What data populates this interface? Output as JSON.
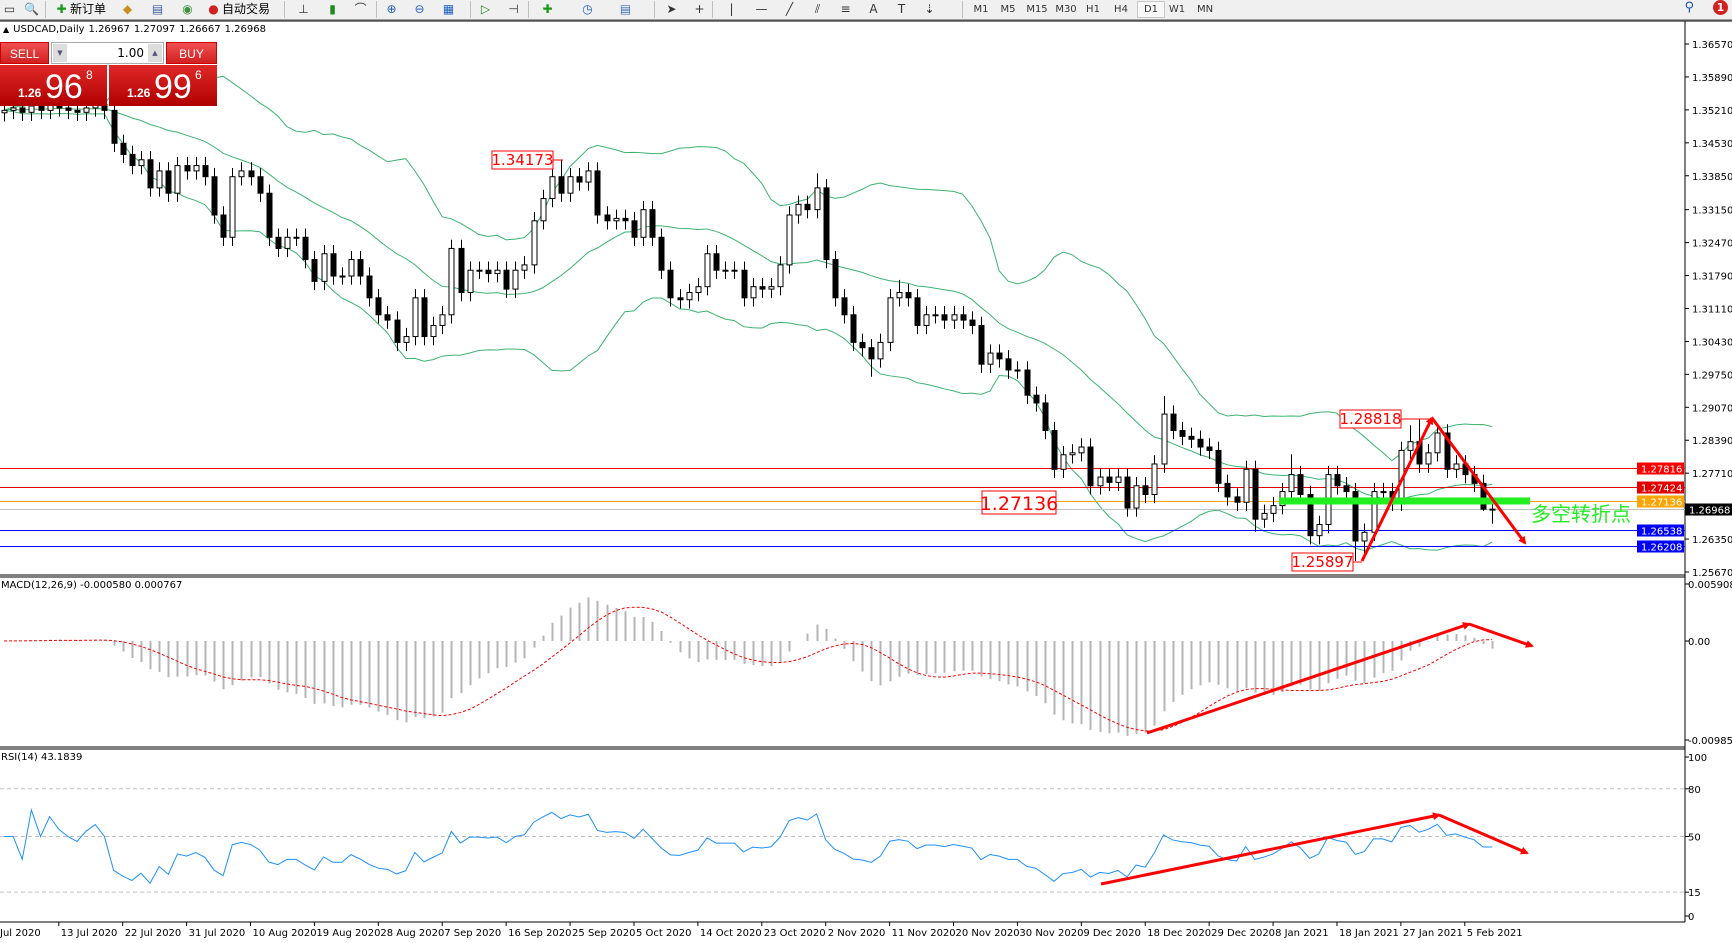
{
  "toolbar": {
    "new_order": "新订单",
    "auto_trading": "自动交易",
    "timeframes": [
      "M1",
      "M5",
      "M15",
      "M30",
      "H1",
      "H4",
      "D1",
      "W1",
      "MN"
    ],
    "active_timeframe": "D1",
    "notification_count": "1",
    "icons": [
      "new-chart-icon",
      "zoom-chart-icon",
      "new-order-icon",
      "metaeditor-icon",
      "market-icon",
      "signals-icon",
      "auto-trading-icon",
      "bar-chart-icon",
      "candlestick-icon",
      "line-chart-icon",
      "zoom-in-icon",
      "zoom-out-icon",
      "tile-windows-icon",
      "autoscroll-icon",
      "chart-shift-icon",
      "indicators-icon",
      "periods-icon",
      "templates-icon",
      "cursor-icon",
      "crosshair-icon",
      "vertical-line-icon",
      "horizontal-line-icon",
      "trendline-icon",
      "equidistant-channel-icon",
      "fibonacci-icon",
      "text-icon",
      "text-label-icon",
      "arrows-icon",
      "search-icon",
      "notification-icon"
    ]
  },
  "trade_panel": {
    "sell_label": "SELL",
    "buy_label": "BUY",
    "volume": "1.00",
    "sell_price": {
      "prefix": "1.26",
      "big": "96",
      "sup": "8"
    },
    "buy_price": {
      "prefix": "1.26",
      "big": "99",
      "sup": "6"
    },
    "color": "#d02020"
  },
  "chart_data": [
    {
      "type": "candlestick",
      "header": {
        "symbol": "USDCAD,Daily",
        "open": "1.26967",
        "high": "1.27097",
        "low": "1.26667",
        "close": "1.26968"
      },
      "ylim": [
        1.2567,
        1.3657
      ],
      "y_ticks": [
        "1.36570",
        "1.35890",
        "1.35210",
        "1.34530",
        "1.33850",
        "1.33150",
        "1.32470",
        "1.31790",
        "1.31110",
        "1.30430",
        "1.29750",
        "1.29070",
        "1.28390",
        "1.27710",
        "1.26350",
        "1.25670"
      ],
      "x_ticks": [
        "Jul 2020",
        "13 Jul 2020",
        "22 Jul 2020",
        "31 Jul 2020",
        "10 Aug 2020",
        "19 Aug 2020",
        "28 Aug 2020",
        "7 Sep 2020",
        "16 Sep 2020",
        "25 Sep 2020",
        "5 Oct 2020",
        "14 Oct 2020",
        "23 Oct 2020",
        "2 Nov 2020",
        "11 Nov 2020",
        "20 Nov 2020",
        "30 Nov 2020",
        "9 Dec 2020",
        "18 Dec 2020",
        "29 Dec 2020",
        "8 Jan 2021",
        "18 Jan 2021",
        "27 Jan 2021",
        "5 Feb 2021"
      ],
      "indicator": "Bollinger Bands",
      "band_color": "#3cb371",
      "open": [
        1.3515,
        1.352,
        1.3525,
        1.3516,
        1.3529,
        1.352,
        1.3532,
        1.3525,
        1.352,
        1.3516,
        1.3525,
        1.3532,
        1.352,
        1.3452,
        1.3429,
        1.3406,
        1.3418,
        1.336,
        1.3395,
        1.3349,
        1.3406,
        1.3395,
        1.3406,
        1.3383,
        1.3304,
        1.3258,
        1.3383,
        1.3395,
        1.3383,
        1.3349,
        1.3258,
        1.3235,
        1.3258,
        1.3258,
        1.3212,
        1.3167,
        1.3224,
        1.3178,
        1.3178,
        1.3212,
        1.3178,
        1.3133,
        1.3098,
        1.3087,
        1.3041,
        1.3053,
        1.3133,
        1.3053,
        1.3076,
        1.3098,
        1.3235,
        1.3144,
        1.319,
        1.319,
        1.3183,
        1.319,
        1.3151,
        1.319,
        1.3201,
        1.3292,
        1.3338,
        1.3383,
        1.3349,
        1.3383,
        1.3372,
        1.3395,
        1.3304,
        1.3292,
        1.3297,
        1.3292,
        1.3258,
        1.3315,
        1.3258,
        1.319,
        1.3133,
        1.3129,
        1.3144,
        1.3156,
        1.3224,
        1.319,
        1.319,
        1.319,
        1.3133,
        1.3156,
        1.3151,
        1.3156,
        1.3201,
        1.3304,
        1.3326,
        1.3315,
        1.336,
        1.3212,
        1.3133,
        1.3098,
        1.3041,
        1.303,
        1.3007,
        1.3041,
        1.3133,
        1.3144,
        1.3133,
        1.3076,
        1.3098,
        1.3098,
        1.3087,
        1.3098,
        1.3087,
        1.3076,
        1.2996,
        1.3019,
        1.3007,
        1.2984,
        1.2984,
        1.2932,
        1.2916,
        1.2859,
        1.2779,
        1.2809,
        1.2813,
        1.2825,
        1.2745,
        1.2763,
        1.2752,
        1.2763,
        1.2699,
        1.2745,
        1.2727,
        1.279,
        1.2893,
        1.2859,
        1.2847,
        1.2841,
        1.2825,
        1.2818,
        1.275,
        1.2722,
        1.2711,
        1.2779,
        1.2676,
        1.2688,
        1.2704,
        1.2733,
        1.2768,
        1.2727,
        1.2642,
        1.2665,
        1.2768,
        1.2745,
        1.2733,
        1.2631,
        1.2649,
        1.2733,
        1.2733,
        1.2711,
        1.2818,
        1.2836,
        1.279,
        1.2813,
        1.2854,
        1.2779,
        1.279,
        1.2768,
        1.275,
        1.26967
      ],
      "high": [
        1.3538,
        1.3543,
        1.3543,
        1.3547,
        1.3547,
        1.355,
        1.355,
        1.3543,
        1.3538,
        1.3543,
        1.355,
        1.355,
        1.3538,
        1.347,
        1.3447,
        1.3436,
        1.3436,
        1.3413,
        1.3413,
        1.3424,
        1.3424,
        1.3424,
        1.3424,
        1.3401,
        1.3322,
        1.3401,
        1.3413,
        1.3413,
        1.3401,
        1.3367,
        1.3276,
        1.3276,
        1.3276,
        1.3276,
        1.323,
        1.3242,
        1.3242,
        1.3196,
        1.323,
        1.323,
        1.3196,
        1.3151,
        1.3116,
        1.3105,
        1.3071,
        1.3151,
        1.3151,
        1.3094,
        1.3116,
        1.3253,
        1.3253,
        1.3208,
        1.3208,
        1.3208,
        1.3208,
        1.3208,
        1.3208,
        1.3219,
        1.331,
        1.3356,
        1.3401,
        1.3417,
        1.3401,
        1.3401,
        1.3413,
        1.3413,
        1.3322,
        1.3315,
        1.3315,
        1.331,
        1.3333,
        1.3333,
        1.3276,
        1.3208,
        1.3151,
        1.3162,
        1.3174,
        1.3242,
        1.3242,
        1.3208,
        1.3208,
        1.3208,
        1.3174,
        1.3174,
        1.3174,
        1.3219,
        1.3322,
        1.3344,
        1.3344,
        1.339,
        1.3378,
        1.323,
        1.3151,
        1.3116,
        1.3059,
        1.3048,
        1.3059,
        1.3151,
        1.317,
        1.3162,
        1.3151,
        1.3116,
        1.3116,
        1.3116,
        1.3116,
        1.3116,
        1.3105,
        1.3094,
        1.3037,
        1.3037,
        1.3025,
        1.3002,
        1.3002,
        1.295,
        1.2934,
        1.2877,
        1.2827,
        1.2831,
        1.2843,
        1.2843,
        1.2781,
        1.2781,
        1.2781,
        1.2781,
        1.2763,
        1.2763,
        1.2808,
        1.293,
        1.2911,
        1.2877,
        1.2865,
        1.2859,
        1.2843,
        1.2836,
        1.2768,
        1.274,
        1.2797,
        1.2797,
        1.2706,
        1.2722,
        1.2751,
        1.281,
        1.2786,
        1.2745,
        1.2683,
        1.2786,
        1.2786,
        1.2763,
        1.2751,
        1.2667,
        1.2751,
        1.2751,
        1.2751,
        1.2836,
        1.287,
        1.2882,
        1.2831,
        1.2872,
        1.2872,
        1.2808,
        1.2808,
        1.2786,
        1.2768,
        1.27097
      ],
      "low": [
        1.3497,
        1.3502,
        1.3498,
        1.3498,
        1.3502,
        1.3502,
        1.3507,
        1.3502,
        1.3498,
        1.3498,
        1.3507,
        1.3502,
        1.3434,
        1.3411,
        1.3388,
        1.3388,
        1.3342,
        1.3342,
        1.3331,
        1.3331,
        1.3377,
        1.3377,
        1.3365,
        1.3286,
        1.324,
        1.324,
        1.3365,
        1.3365,
        1.3331,
        1.324,
        1.3217,
        1.3217,
        1.324,
        1.3194,
        1.3149,
        1.3149,
        1.316,
        1.316,
        1.316,
        1.316,
        1.3115,
        1.308,
        1.3069,
        1.3023,
        1.3023,
        1.3035,
        1.3035,
        1.3035,
        1.3058,
        1.308,
        1.3126,
        1.3126,
        1.3172,
        1.3165,
        1.3165,
        1.3133,
        1.3133,
        1.3172,
        1.3183,
        1.3274,
        1.332,
        1.3331,
        1.3331,
        1.3354,
        1.3354,
        1.3286,
        1.3274,
        1.3274,
        1.3274,
        1.324,
        1.324,
        1.324,
        1.3172,
        1.3115,
        1.3111,
        1.3111,
        1.3126,
        1.3138,
        1.3172,
        1.3172,
        1.3172,
        1.3115,
        1.3115,
        1.3133,
        1.3133,
        1.3138,
        1.3183,
        1.3286,
        1.3297,
        1.3297,
        1.3194,
        1.3115,
        1.308,
        1.3023,
        1.3012,
        1.297,
        1.2989,
        1.3023,
        1.3115,
        1.3115,
        1.3058,
        1.3058,
        1.308,
        1.3069,
        1.3069,
        1.3069,
        1.3058,
        1.2978,
        1.2978,
        1.2989,
        1.2966,
        1.2966,
        1.2914,
        1.2898,
        1.2841,
        1.2761,
        1.2761,
        1.2791,
        1.2795,
        1.2727,
        1.2727,
        1.2734,
        1.2734,
        1.2681,
        1.2681,
        1.2709,
        1.2709,
        1.2772,
        1.2841,
        1.2829,
        1.2823,
        1.2807,
        1.28,
        1.2732,
        1.2704,
        1.2693,
        1.2693,
        1.265,
        1.2658,
        1.267,
        1.2686,
        1.2715,
        1.2709,
        1.2624,
        1.2624,
        1.2647,
        1.2727,
        1.2715,
        1.259,
        1.26,
        1.2631,
        1.2715,
        1.2693,
        1.2693,
        1.28,
        1.2772,
        1.2772,
        1.2795,
        1.2761,
        1.2761,
        1.275,
        1.2732,
        1.2693,
        1.26667
      ],
      "close": [
        1.352,
        1.3525,
        1.3516,
        1.3529,
        1.352,
        1.3532,
        1.3525,
        1.352,
        1.3516,
        1.3525,
        1.3532,
        1.352,
        1.3452,
        1.3429,
        1.3406,
        1.3418,
        1.336,
        1.3395,
        1.3349,
        1.3406,
        1.3395,
        1.3406,
        1.3383,
        1.3304,
        1.3258,
        1.3383,
        1.3395,
        1.3383,
        1.3349,
        1.3258,
        1.3235,
        1.3258,
        1.3258,
        1.3212,
        1.3167,
        1.3224,
        1.3178,
        1.3178,
        1.3212,
        1.3178,
        1.3133,
        1.3098,
        1.3087,
        1.3041,
        1.3053,
        1.3133,
        1.3053,
        1.3076,
        1.3098,
        1.3235,
        1.3144,
        1.319,
        1.319,
        1.3183,
        1.319,
        1.3151,
        1.319,
        1.3201,
        1.3292,
        1.3338,
        1.3383,
        1.3349,
        1.3383,
        1.3372,
        1.3395,
        1.3304,
        1.3292,
        1.3297,
        1.3292,
        1.3258,
        1.3315,
        1.3258,
        1.319,
        1.3133,
        1.3129,
        1.3144,
        1.3156,
        1.3224,
        1.319,
        1.319,
        1.319,
        1.3133,
        1.3156,
        1.3151,
        1.3156,
        1.3201,
        1.3304,
        1.3326,
        1.3315,
        1.336,
        1.3212,
        1.3133,
        1.3098,
        1.3041,
        1.303,
        1.3007,
        1.3041,
        1.3133,
        1.3144,
        1.3133,
        1.3076,
        1.3098,
        1.3098,
        1.3087,
        1.3098,
        1.3087,
        1.3076,
        1.2996,
        1.3019,
        1.3007,
        1.2984,
        1.2984,
        1.2932,
        1.2916,
        1.2859,
        1.2779,
        1.2809,
        1.2813,
        1.2825,
        1.2745,
        1.2763,
        1.2752,
        1.2763,
        1.2699,
        1.2745,
        1.2727,
        1.279,
        1.2893,
        1.2859,
        1.2847,
        1.2841,
        1.2825,
        1.2818,
        1.275,
        1.2722,
        1.2711,
        1.2779,
        1.2676,
        1.2688,
        1.2704,
        1.2733,
        1.2768,
        1.2727,
        1.2642,
        1.2665,
        1.2768,
        1.2745,
        1.2733,
        1.2631,
        1.2649,
        1.2733,
        1.2733,
        1.2711,
        1.2818,
        1.2836,
        1.279,
        1.2813,
        1.2854,
        1.2779,
        1.279,
        1.2768,
        1.275,
        1.26967,
        1.26968
      ],
      "hlines": [
        {
          "price": "1.27816",
          "color": "#ff0000",
          "text_color": "#ffffff"
        },
        {
          "price": "1.27424",
          "color": "#e00000",
          "text_color": "#ffffff"
        },
        {
          "price": "1.27136",
          "color": "#ffa500",
          "text_color": "#ffffff"
        },
        {
          "price": "1.26968",
          "color": "#c0c0c0",
          "badge": "#000000",
          "text_color": "#ffffff"
        },
        {
          "price": "1.26538",
          "color": "#0000ff",
          "text_color": "#ffffff"
        },
        {
          "price": "1.26208",
          "color": "#0000ff",
          "text_color": "#ffffff"
        }
      ],
      "annotations": {
        "high_label": "1.34173",
        "recent_high_label": "1.28818",
        "low_label": "1.25897",
        "pivot_label": "1.27136",
        "pivot_text": "多空转折点",
        "pivot_color": "#22ee22",
        "arrow_color": "#ff0000"
      }
    },
    {
      "type": "bar+line",
      "title": "MACD(12,26,9) -0.000580 0.000767",
      "y_ticks": [
        "0.005908",
        "0.00",
        "-0.009851"
      ],
      "ylim": [
        -0.009851,
        0.005908
      ],
      "histogram_color": "#b4b4b4",
      "signal_color": "#ff0000"
    },
    {
      "type": "line",
      "title": "RSI(14) 43.1839",
      "y_ticks": [
        "100",
        "80",
        "50",
        "15",
        "0"
      ],
      "ylim": [
        0,
        100
      ],
      "levels": [
        80,
        50,
        15
      ],
      "line_color": "#1e90ff"
    }
  ]
}
